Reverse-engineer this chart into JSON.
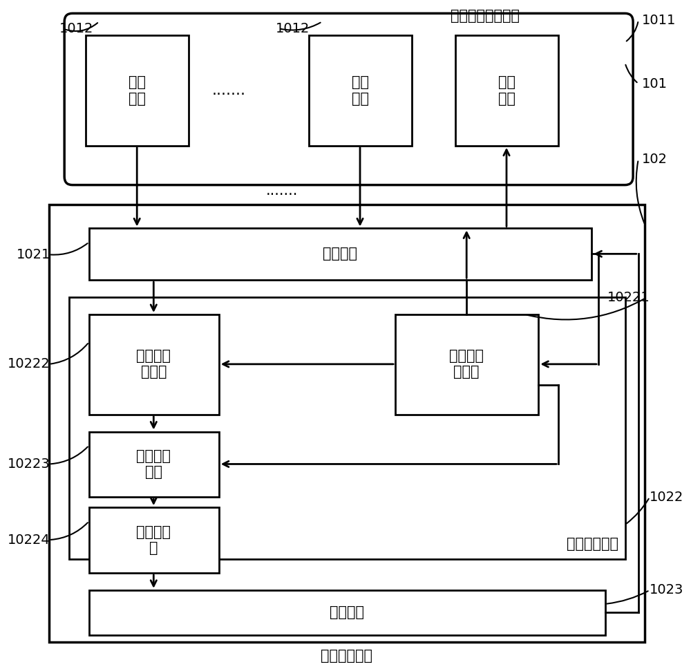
{
  "background_color": "#ffffff",
  "fig_width": 10.0,
  "fig_height": 9.68,
  "dpi": 100,
  "text_probe_group": "三路以上监测探头",
  "text_recv1": "接收\n探头",
  "text_dots_between": ".......",
  "text_dots_below": ".......",
  "text_recv2": "接收\n探头",
  "text_emit": "发射\n探头",
  "text_switch": "开关单元",
  "text_demod": "超声信号\n解调器",
  "text_generator": "超声信号\n发生器",
  "text_adc_front": "模数转换\n前端",
  "text_adc": "模数转换\n器",
  "text_signal_proc_unit": "信号处理单元",
  "text_control": "控制单元",
  "text_signal_proc_comp": "信号处理组件",
  "label_1011": "1011",
  "label_1012a": "1012",
  "label_1012b": "1012",
  "label_101": "101",
  "label_102": "102",
  "label_1021": "1021",
  "label_10221": "10221",
  "label_10222": "10222",
  "label_10223": "10223",
  "label_10224": "10224",
  "label_1022": "1022",
  "label_1023": "1023"
}
